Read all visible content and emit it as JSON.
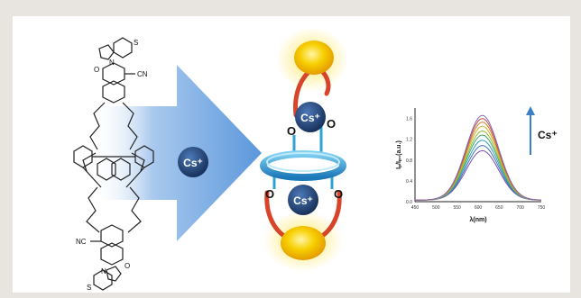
{
  "figure": {
    "arrow_ion": "Cs⁺",
    "complex_ion_top": "Cs⁺",
    "complex_ion_bottom": "Cs⁺",
    "oxygen_label": "O",
    "chem_atoms": {
      "O": "O",
      "S": "S",
      "N": "N",
      "CN": "CN",
      "NC": "NC"
    },
    "inset": {
      "ylabel": "Iₚ/Iₚ₀(a.u.)",
      "xlabel": "λ(nm)",
      "annotation": "Cs⁺"
    },
    "colors": {
      "arrow": "#6aa3e0",
      "ion": "#1d3f72",
      "ring": "#2fa3d6",
      "loop": "#d8442a",
      "ball": "#f5c400"
    }
  },
  "chart_data": {
    "type": "line",
    "title": "",
    "xlabel": "λ(nm)",
    "ylabel": "Iₚ/Iₚ₀(a.u.)",
    "xlim": [
      450,
      750
    ],
    "ylim": [
      0,
      1.8
    ],
    "x_ticks": [
      "450",
      "500",
      "550",
      "600",
      "650",
      "700",
      "750"
    ],
    "y_ticks": [
      "0.0",
      "0.4",
      "0.8",
      "1.2",
      "1.6"
    ],
    "peak_x": 610,
    "peak_values": [
      0.95,
      1.05,
      1.15,
      1.25,
      1.33,
      1.42,
      1.5,
      1.57,
      1.63
    ],
    "annotation": "Cs⁺"
  }
}
